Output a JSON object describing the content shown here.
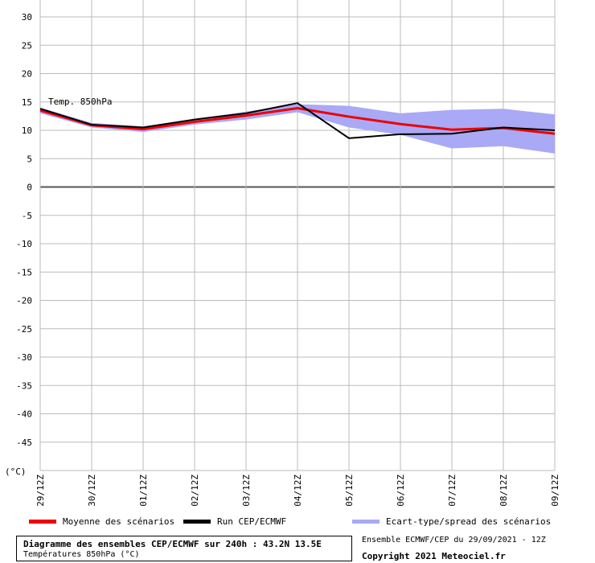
{
  "chart_data": {
    "type": "line",
    "series_label": "Temp. 850hPa",
    "y_unit": "(°C)",
    "ylim": [
      -50,
      30
    ],
    "yticks": [
      30,
      25,
      20,
      15,
      10,
      5,
      0,
      -5,
      -10,
      -15,
      -20,
      -25,
      -30,
      -35,
      -40,
      -45
    ],
    "categories": [
      "29/12Z",
      "30/12Z",
      "01/12Z",
      "02/12Z",
      "03/12Z",
      "04/12Z",
      "05/12Z",
      "06/12Z",
      "07/12Z",
      "08/12Z",
      "09/12Z"
    ],
    "series": [
      {
        "name": "Moyenne des scénarios",
        "color": "#ee0000",
        "values": [
          13.5,
          10.9,
          10.2,
          11.5,
          12.6,
          13.9,
          12.4,
          11.1,
          10.1,
          10.4,
          9.4
        ]
      },
      {
        "name": "Run CEP/ECMWF",
        "color": "#000000",
        "values": [
          13.8,
          11.0,
          10.5,
          11.9,
          13.0,
          14.8,
          8.6,
          9.3,
          9.4,
          10.5,
          10.0
        ]
      }
    ],
    "spread": {
      "name": "Ecart-type/spread des scénarios",
      "color": "#a9a9f5",
      "upper": [
        14.0,
        11.3,
        10.7,
        12.0,
        13.3,
        14.6,
        14.3,
        13.0,
        13.6,
        13.8,
        12.8
      ],
      "lower": [
        13.0,
        10.5,
        9.7,
        11.0,
        11.9,
        13.2,
        10.5,
        9.2,
        6.8,
        7.2,
        5.9
      ]
    },
    "grid": true,
    "legend": [
      "Moyenne des scénarios",
      "Run CEP/ECMWF",
      "Ecart-type/spread des scénarios"
    ]
  },
  "footer": {
    "title": "Diagramme des ensembles CEP/ECMWF sur 240h : 43.2N 13.5E",
    "subtitle": "Températures 850hPa (°C)",
    "run_info": "Ensemble ECMWF/CEP du 29/09/2021 - 12Z",
    "copyright": "Copyright 2021 Meteociel.fr"
  }
}
